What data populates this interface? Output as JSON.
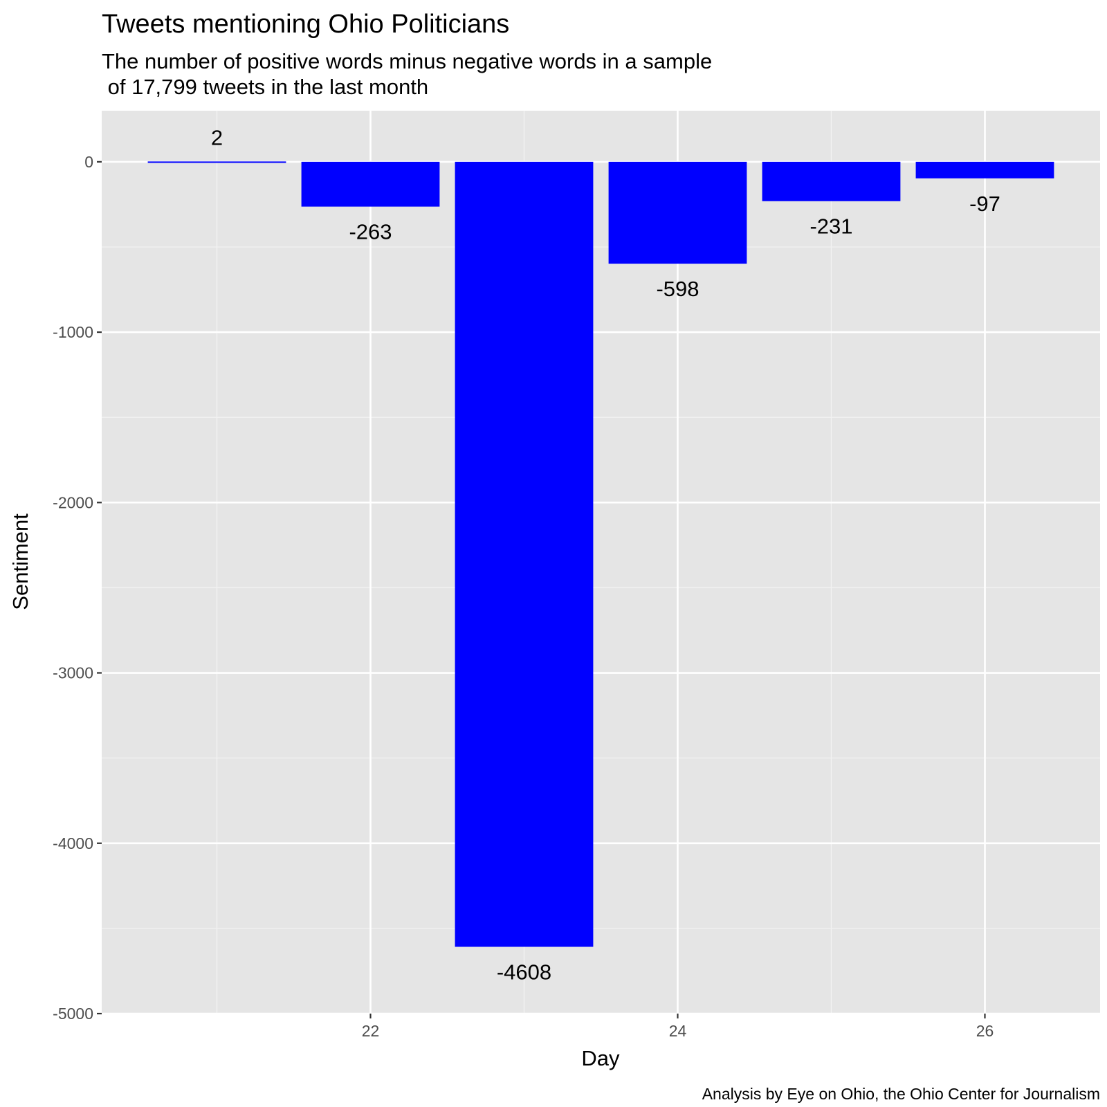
{
  "chart_data": {
    "type": "bar",
    "title": "Tweets mentioning Ohio Politicians",
    "subtitle_lines": [
      "The number of positive words minus negative words in a sample",
      " of 17,799 tweets in the last month"
    ],
    "caption": "Analysis by Eye on Ohio, the Ohio Center for Journalism",
    "xlabel": "Day",
    "ylabel": "Sentiment",
    "x": [
      21,
      22,
      23,
      24,
      25,
      26
    ],
    "values": [
      2,
      -263,
      -4608,
      -598,
      -231,
      -97
    ],
    "data_labels": [
      "2",
      "-263",
      "-4608",
      "-598",
      "-231",
      "-97"
    ],
    "xlim": [
      20.25,
      26.75
    ],
    "ylim": [
      -5000,
      300
    ],
    "x_ticks": [
      22,
      24,
      26
    ],
    "x_tick_labels": [
      "22",
      "24",
      "26"
    ],
    "y_ticks": [
      0,
      -1000,
      -2000,
      -3000,
      -4000,
      -5000
    ],
    "y_tick_labels": [
      "0",
      "-1000",
      "-2000",
      "-3000",
      "-4000",
      "-5000"
    ],
    "grid": true,
    "legend": "none",
    "colors": {
      "bar": "#0000ff",
      "panel_background": "#e5e5e5",
      "grid_major": "#ffffff",
      "grid_minor": "#f2f2f2"
    }
  }
}
